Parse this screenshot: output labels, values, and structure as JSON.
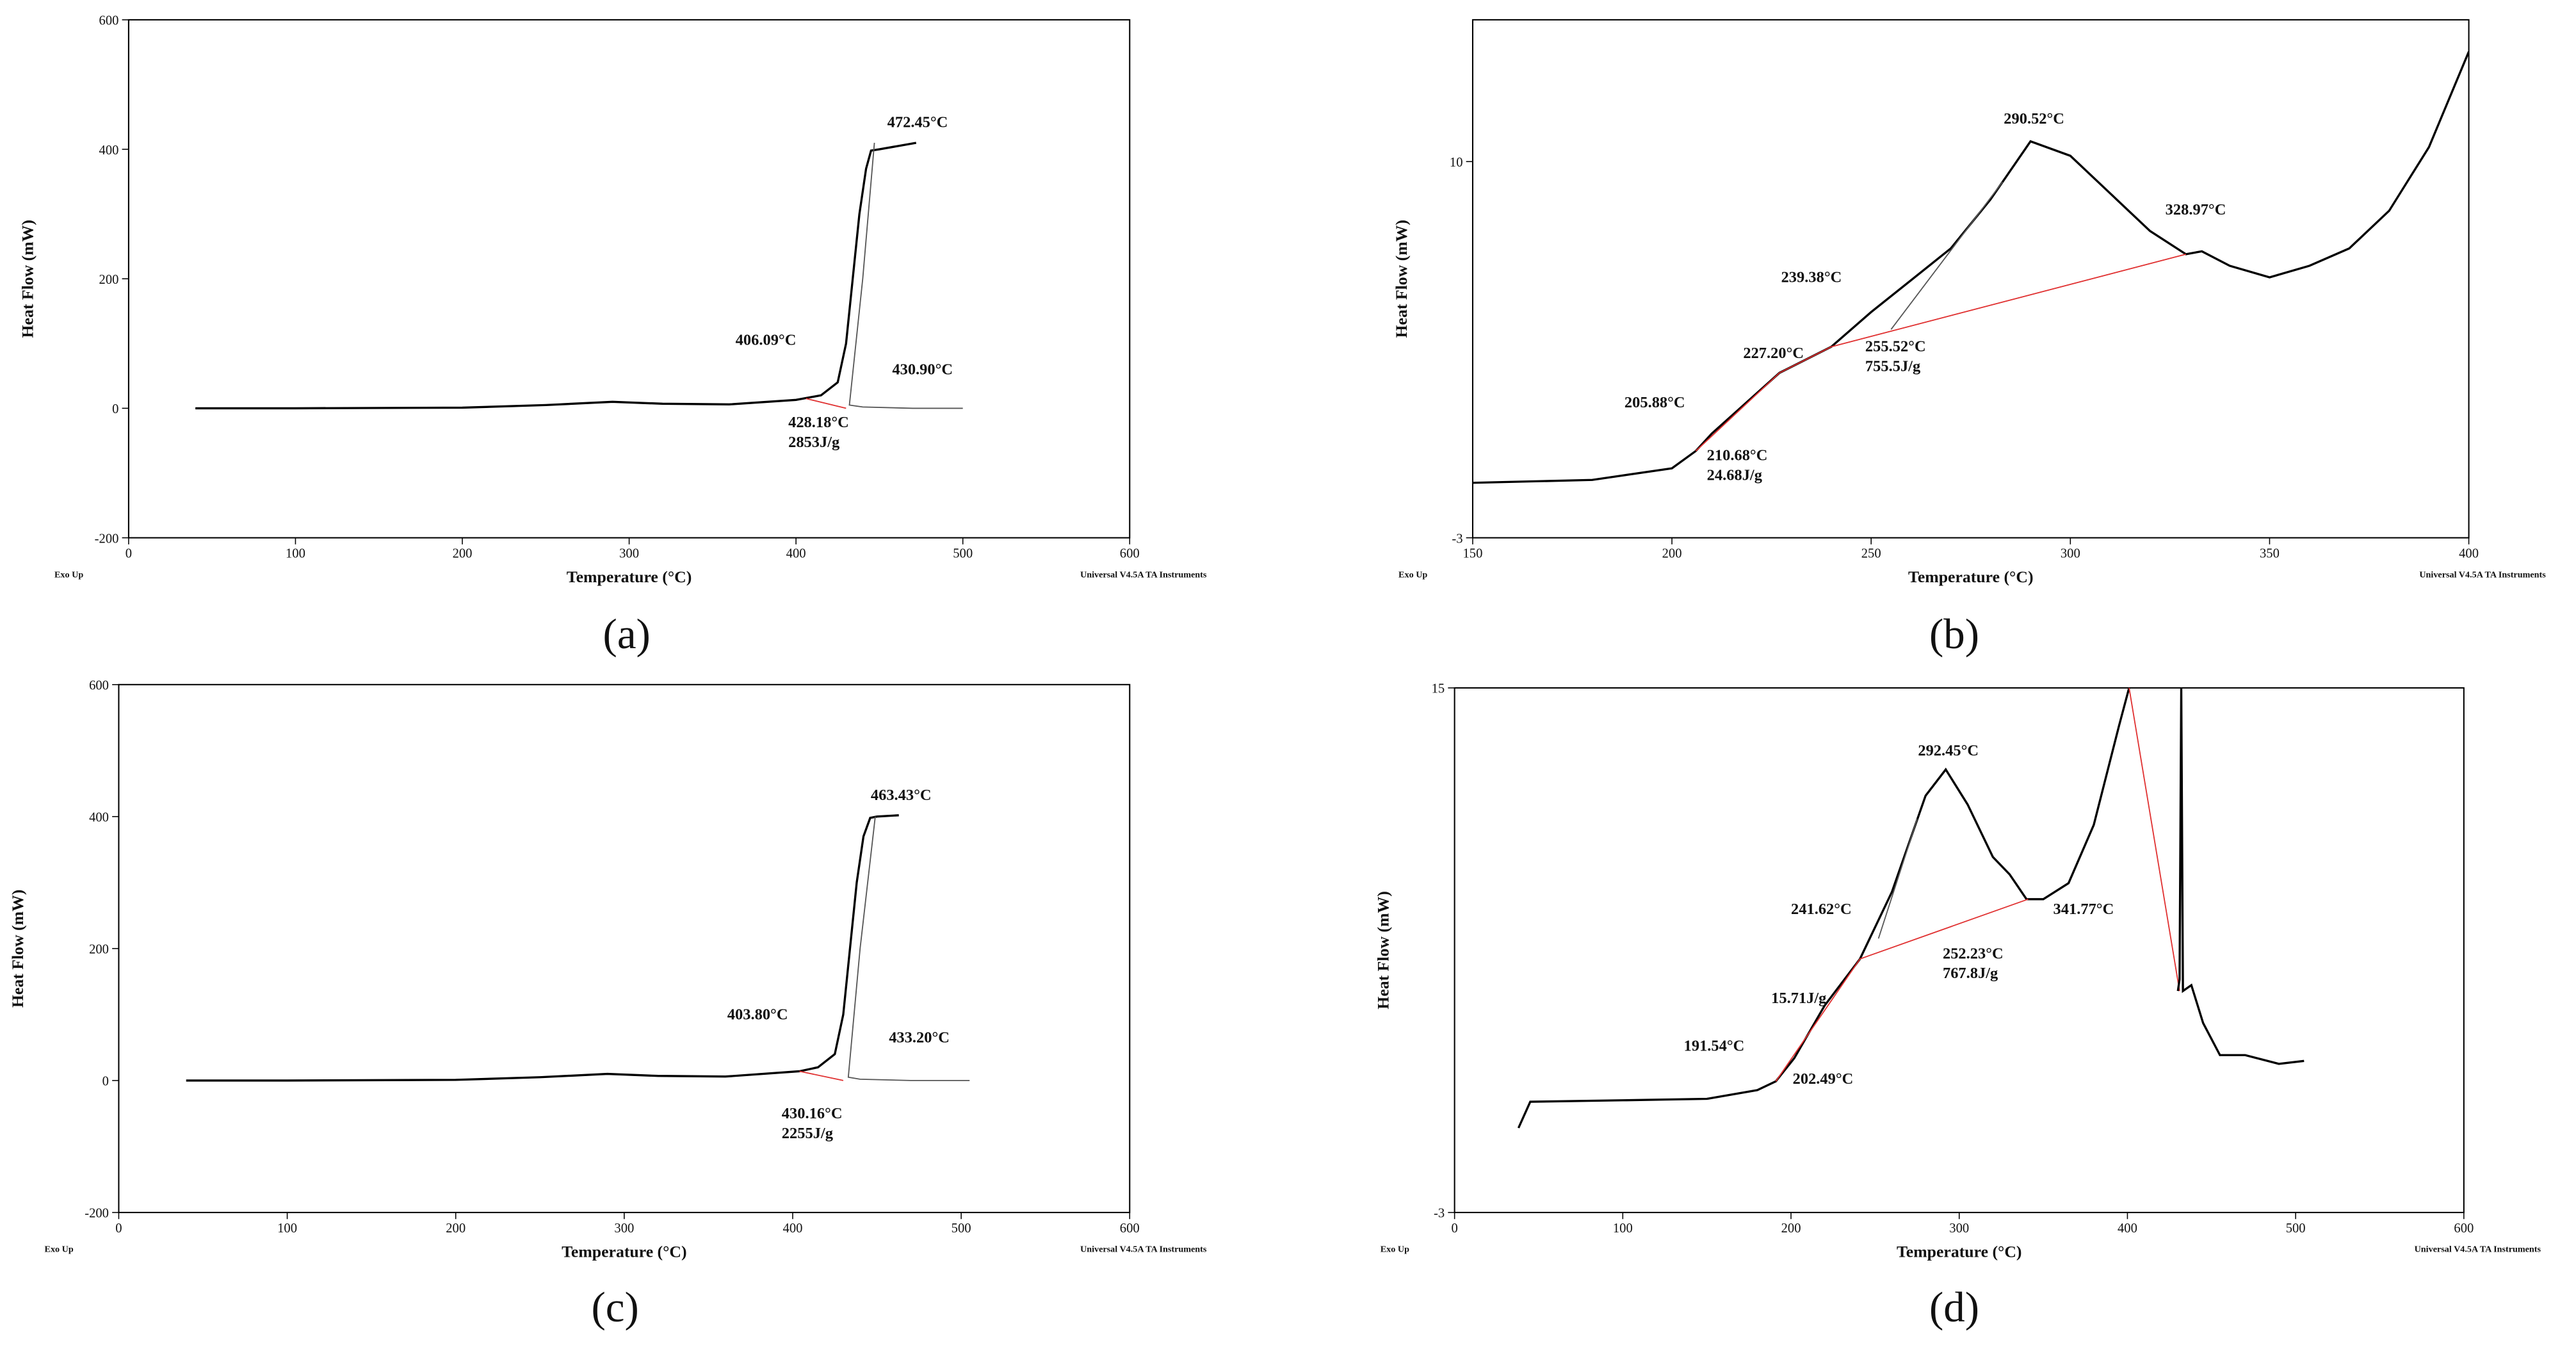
{
  "chart_data": [
    {
      "type": "line",
      "panel": "(a)",
      "xlabel": "Temperature (°C)",
      "ylabel": "Heat Flow (mW)",
      "corner_left": "Exo Up",
      "corner_right": "Universal V4.5A TA Instruments",
      "xlim": [
        0,
        600
      ],
      "xticks": [
        0,
        100,
        200,
        300,
        400,
        500,
        600
      ],
      "ylim": [
        -200,
        600
      ],
      "yticks": [
        -200,
        0,
        200,
        400,
        600
      ],
      "annotations": [
        "472.45°C",
        "406.09°C",
        "430.90°C",
        "428.18°C",
        "2853J/g"
      ],
      "series": [
        {
          "color": "#000000",
          "x": [
            40,
            100,
            200,
            250,
            290,
            320,
            360,
            400,
            415,
            425,
            430,
            434,
            438,
            442,
            445,
            450,
            472
          ],
          "values": [
            0,
            0,
            1,
            5,
            10,
            7,
            6,
            13,
            20,
            40,
            100,
            200,
            300,
            370,
            398,
            400,
            410
          ]
        },
        {
          "color": "#555555",
          "x": [
            447,
            440,
            432,
            440,
            470,
            500
          ],
          "values": [
            410,
            200,
            5,
            2,
            0,
            0
          ]
        },
        {
          "color": "#e03030",
          "x": [
            406,
            430
          ],
          "values": [
            15,
            0
          ]
        }
      ]
    },
    {
      "type": "line",
      "panel": "(b)",
      "xlabel": "Temperature (°C)",
      "ylabel": "Heat Flow (mW)",
      "corner_left": "Exo Up",
      "corner_right": "Universal V4.5A TA Instruments",
      "xlim": [
        150,
        400
      ],
      "xticks": [
        150,
        200,
        250,
        300,
        350,
        400
      ],
      "ylim": [
        -3,
        14.9
      ],
      "yticks": [
        -3,
        10
      ],
      "annotations": [
        "290.52°C",
        "328.97°C",
        "239.38°C",
        "227.20°C",
        "255.52°C",
        "755.5J/g",
        "205.88°C",
        "210.68°C",
        "24.68J/g"
      ],
      "series": [
        {
          "color": "#000000",
          "x": [
            150,
            180,
            200,
            206,
            210,
            227,
            240,
            250,
            260,
            270,
            280,
            290,
            300,
            310,
            320,
            329,
            333,
            340,
            350,
            360,
            370,
            380,
            390,
            400
          ],
          "values": [
            -1.1,
            -1.0,
            -0.6,
            0,
            0.6,
            2.7,
            3.6,
            4.8,
            5.9,
            7.0,
            8.7,
            10.7,
            10.2,
            8.9,
            7.6,
            6.8,
            6.9,
            6.4,
            6.0,
            6.4,
            7.0,
            8.3,
            10.5,
            13.8
          ]
        },
        {
          "color": "#555555",
          "x": [
            255,
            283
          ],
          "values": [
            4.2,
            9.3
          ]
        },
        {
          "color": "#e03030",
          "x": [
            206,
            227,
            240,
            329
          ],
          "values": [
            0,
            2.7,
            3.6,
            6.8
          ]
        }
      ]
    },
    {
      "type": "line",
      "panel": "(c)",
      "xlabel": "Temperature (°C)",
      "ylabel": "Heat Flow (mW)",
      "corner_left": "Exo Up",
      "corner_right": "Universal V4.5A TA Instruments",
      "xlim": [
        0,
        600
      ],
      "xticks": [
        0,
        100,
        200,
        300,
        400,
        500,
        600
      ],
      "ylim": [
        -200,
        600
      ],
      "yticks": [
        -200,
        0,
        200,
        400,
        600
      ],
      "annotations": [
        "463.43°C",
        "403.80°C",
        "433.20°C",
        "430.16°C",
        "2255J/g"
      ],
      "series": [
        {
          "color": "#000000",
          "x": [
            40,
            100,
            200,
            250,
            290,
            320,
            360,
            404,
            415,
            425,
            430,
            434,
            438,
            442,
            446,
            450,
            463
          ],
          "values": [
            0,
            0,
            1,
            5,
            10,
            7,
            6,
            14,
            20,
            40,
            100,
            200,
            300,
            370,
            398,
            400,
            402
          ]
        },
        {
          "color": "#555555",
          "x": [
            449,
            440,
            433,
            440,
            470,
            505
          ],
          "values": [
            400,
            200,
            5,
            2,
            0,
            0
          ]
        },
        {
          "color": "#e03030",
          "x": [
            404,
            430
          ],
          "values": [
            14,
            0
          ]
        }
      ]
    },
    {
      "type": "line",
      "panel": "(d)",
      "xlabel": "Temperature (°C)",
      "ylabel": "Heat Flow (mW)",
      "corner_left": "Exo Up",
      "corner_right": "Universal V4.5A TA Instruments",
      "xlim": [
        0,
        600
      ],
      "xticks": [
        0,
        100,
        200,
        300,
        400,
        500,
        600
      ],
      "ylim": [
        -3,
        15
      ],
      "yticks": [
        -3,
        15
      ],
      "annotations": [
        "292.45°C",
        "241.62°C",
        "341.77°C",
        "252.23°C",
        "767.8J/g",
        "15.71J/g",
        "191.54°C",
        "202.49°C"
      ],
      "series": [
        {
          "color": "#000000",
          "x": [
            38,
            45,
            100,
            150,
            180,
            191,
            202,
            220,
            241,
            260,
            280,
            292,
            305,
            320,
            330,
            340,
            350,
            365,
            380,
            395,
            401
          ],
          "values": [
            -0.1,
            0.8,
            0.85,
            0.9,
            1.2,
            1.5,
            2.3,
            4.1,
            5.7,
            8.0,
            11.3,
            12.2,
            11.0,
            9.2,
            8.6,
            7.75,
            7.75,
            8.3,
            10.3,
            13.7,
            15
          ]
        },
        {
          "color": "#e03030",
          "x": [
            401,
            431
          ],
          "values": [
            15,
            4.6
          ]
        },
        {
          "color": "#000000",
          "x": [
            430,
            431,
            432,
            433,
            438,
            445,
            455,
            470,
            490,
            505
          ],
          "values": [
            4.6,
            5,
            15,
            4.6,
            4.8,
            3.5,
            2.4,
            2.4,
            2.1,
            2.2
          ]
        },
        {
          "color": "#555555",
          "x": [
            252,
            275
          ],
          "values": [
            6.4,
            10.5
          ]
        },
        {
          "color": "#e03030",
          "x": [
            191,
            241,
            341
          ],
          "values": [
            1.5,
            5.7,
            7.75
          ]
        }
      ]
    }
  ]
}
